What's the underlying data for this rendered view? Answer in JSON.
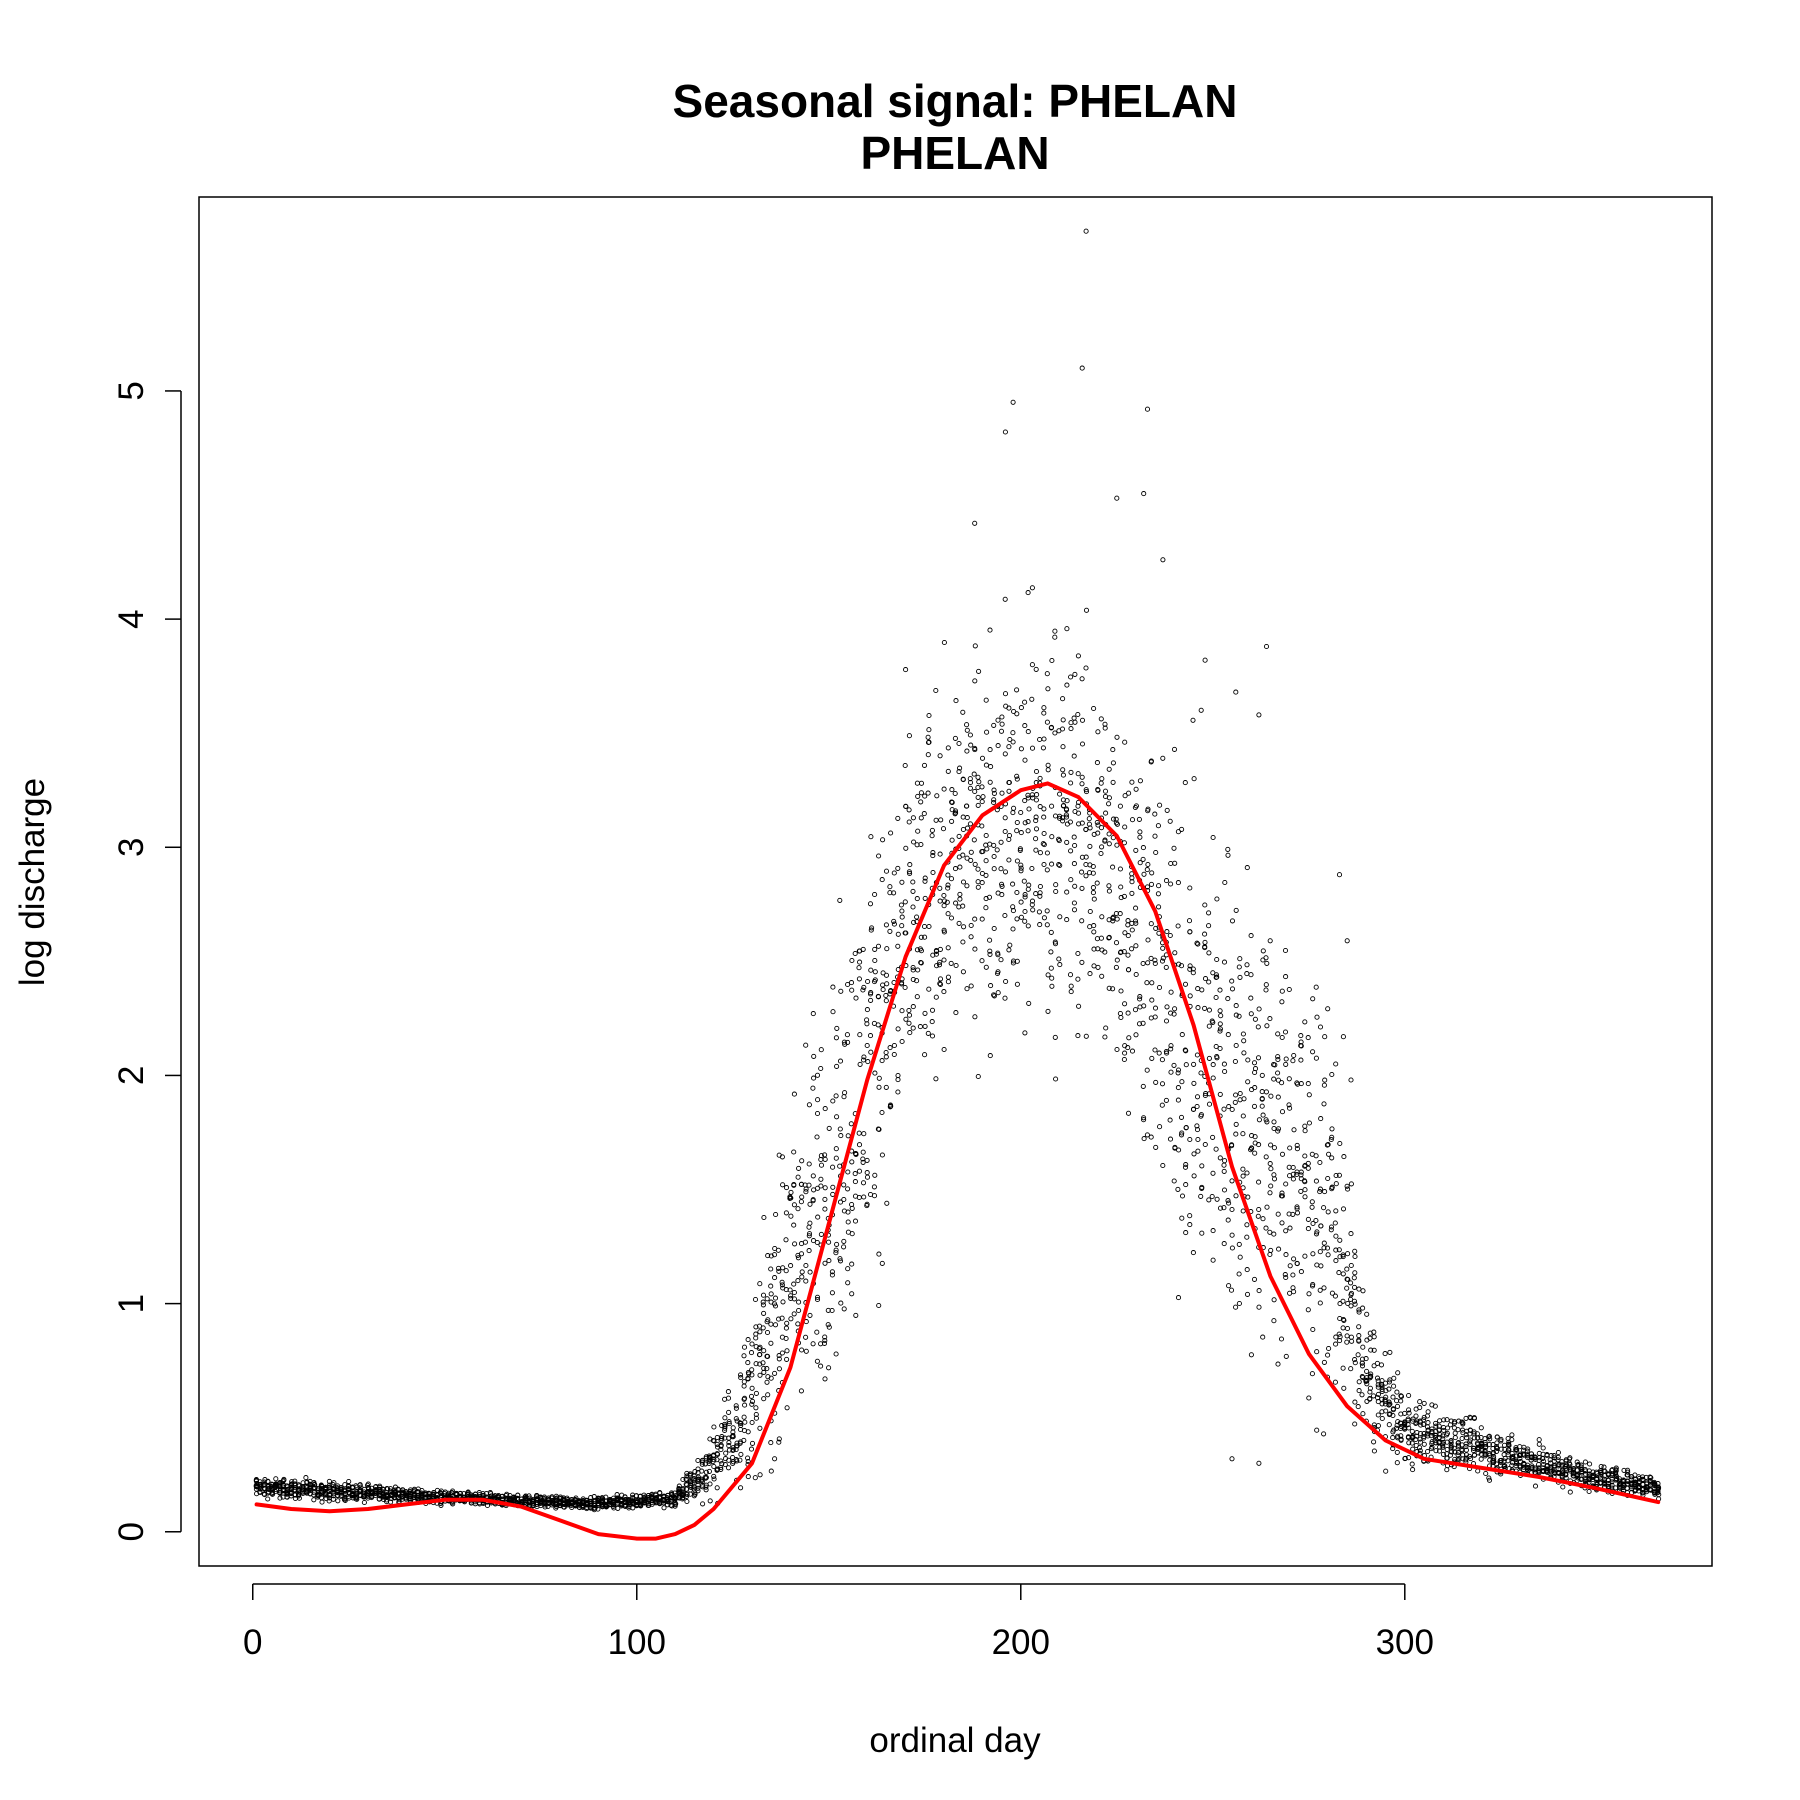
{
  "chart_data": {
    "type": "scatter",
    "title": "Seasonal signal: PHELAN",
    "subtitle": "PHELAN",
    "xlabel": "ordinal day",
    "ylabel": "log discharge",
    "xlim": [
      -14,
      380
    ],
    "ylim": [
      -0.15,
      5.85
    ],
    "xticks": [
      "0",
      "100",
      "200",
      "300"
    ],
    "yticks": [
      "0",
      "1",
      "2",
      "3",
      "4",
      "5"
    ],
    "grid": false,
    "point_color": "#000000",
    "curve_color": "#ff0000",
    "smooth_curve": {
      "x": [
        1,
        10,
        20,
        30,
        40,
        50,
        60,
        70,
        80,
        90,
        100,
        105,
        110,
        115,
        120,
        130,
        140,
        150,
        160,
        170,
        180,
        190,
        200,
        207,
        215,
        225,
        235,
        245,
        255,
        265,
        275,
        285,
        295,
        305,
        320,
        335,
        350,
        366
      ],
      "y": [
        0.12,
        0.1,
        0.09,
        0.1,
        0.12,
        0.14,
        0.14,
        0.11,
        0.05,
        -0.01,
        -0.03,
        -0.03,
        -0.01,
        0.03,
        0.1,
        0.3,
        0.72,
        1.35,
        1.98,
        2.52,
        2.92,
        3.14,
        3.25,
        3.28,
        3.22,
        3.05,
        2.72,
        2.22,
        1.6,
        1.12,
        0.78,
        0.55,
        0.4,
        0.32,
        0.28,
        0.24,
        0.19,
        0.13
      ]
    },
    "scatter_envelope": {
      "x": [
        1,
        30,
        60,
        90,
        110,
        120,
        130,
        140,
        150,
        160,
        170,
        180,
        190,
        200,
        210,
        220,
        230,
        240,
        250,
        260,
        270,
        280,
        290,
        300,
        310,
        330,
        350,
        366
      ],
      "lower": [
        0.13,
        0.12,
        0.1,
        0.09,
        0.09,
        0.1,
        0.1,
        0.1,
        0.25,
        0.7,
        1.3,
        1.75,
        1.9,
        1.85,
        1.8,
        1.75,
        1.45,
        0.7,
        0.45,
        0.3,
        0.3,
        0.28,
        0.26,
        0.24,
        0.22,
        0.19,
        0.15,
        0.13
      ],
      "upper": [
        0.26,
        0.22,
        0.18,
        0.16,
        0.2,
        0.5,
        1.1,
        2.2,
        2.8,
        3.35,
        3.85,
        4.1,
        4.15,
        4.4,
        4.4,
        4.2,
        4.0,
        3.8,
        3.7,
        3.3,
        2.9,
        2.6,
        1.1,
        0.65,
        0.6,
        0.45,
        0.32,
        0.26
      ]
    },
    "scatter_points_per_day": 11,
    "outliers": [
      {
        "x": 217,
        "y": 5.7
      },
      {
        "x": 216,
        "y": 5.1
      },
      {
        "x": 198,
        "y": 4.95
      },
      {
        "x": 196,
        "y": 4.82
      },
      {
        "x": 233,
        "y": 4.92
      },
      {
        "x": 232,
        "y": 4.55
      },
      {
        "x": 225,
        "y": 4.53
      },
      {
        "x": 188,
        "y": 4.42
      },
      {
        "x": 237,
        "y": 4.26
      },
      {
        "x": 264,
        "y": 3.88
      },
      {
        "x": 248,
        "y": 3.82
      },
      {
        "x": 256,
        "y": 3.68
      },
      {
        "x": 262,
        "y": 3.58
      },
      {
        "x": 283,
        "y": 2.88
      },
      {
        "x": 285,
        "y": 2.59
      },
      {
        "x": 284,
        "y": 2.17
      },
      {
        "x": 282,
        "y": 2.05
      },
      {
        "x": 286,
        "y": 1.98
      },
      {
        "x": 255,
        "y": 0.32
      },
      {
        "x": 262,
        "y": 0.3
      }
    ]
  }
}
